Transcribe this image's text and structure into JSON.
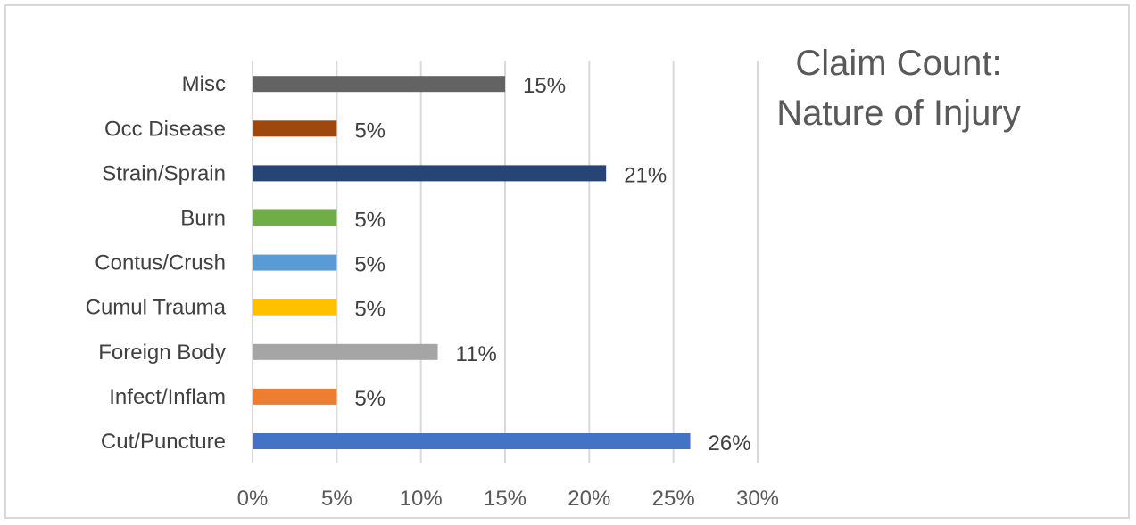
{
  "chart_data": {
    "type": "bar",
    "orientation": "horizontal",
    "title_lines": [
      "Claim Count:",
      "Nature of Injury"
    ],
    "xlabel": "",
    "ylabel": "",
    "categories": [
      "Cut/Puncture",
      "Infect/Inflam",
      "Foreign Body",
      "Cumul Trauma",
      "Contus/Crush",
      "Burn",
      "Strain/Sprain",
      "Occ Disease",
      "Misc"
    ],
    "values": [
      26,
      5,
      11,
      5,
      5,
      5,
      21,
      5,
      15
    ],
    "value_labels": [
      "26%",
      "5%",
      "11%",
      "5%",
      "5%",
      "5%",
      "21%",
      "5%",
      "15%"
    ],
    "colors": [
      "#4472c4",
      "#ed7d31",
      "#a5a5a5",
      "#ffc000",
      "#5b9bd5",
      "#70ad47",
      "#264478",
      "#9e480e",
      "#636363"
    ],
    "xlim": [
      0,
      30
    ],
    "xticks": [
      0,
      5,
      10,
      15,
      20,
      25,
      30
    ],
    "xtick_labels": [
      "0%",
      "5%",
      "10%",
      "15%",
      "20%",
      "25%",
      "30%"
    ],
    "grid": "vertical",
    "legend": "none",
    "title_position": "top-right"
  }
}
